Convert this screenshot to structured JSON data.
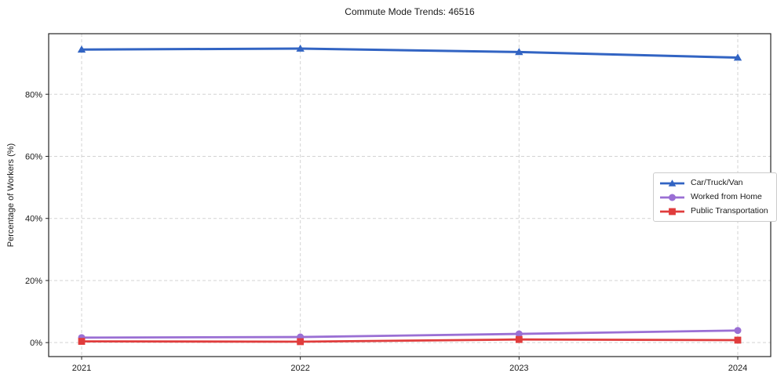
{
  "chart_data": {
    "type": "line",
    "title": "Commute Mode Trends: 46516",
    "xlabel": "",
    "ylabel": "Percentage of Workers (%)",
    "categories": [
      "2021",
      "2022",
      "2023",
      "2024"
    ],
    "series": [
      {
        "name": "Car/Truck/Van",
        "color": "#3264c3",
        "marker": "triangle",
        "values": [
          94.4,
          94.7,
          93.6,
          91.8
        ]
      },
      {
        "name": "Worked from Home",
        "color": "#9a6fd4",
        "marker": "circle",
        "values": [
          1.6,
          1.8,
          2.8,
          3.9
        ]
      },
      {
        "name": "Public Transportation",
        "color": "#e03c3c",
        "marker": "square",
        "values": [
          0.4,
          0.3,
          1.0,
          0.8
        ]
      }
    ],
    "yticks": [
      0,
      20,
      40,
      60,
      80
    ],
    "ytick_labels": [
      "0%",
      "20%",
      "40%",
      "60%",
      "80%"
    ],
    "ylim": [
      -4.5,
      99.5
    ],
    "grid": "dashed-both-axes",
    "legend_position": "center-right",
    "colors": {
      "grid": "#d3d3d3",
      "axis": "#262626",
      "text": "#1a1a1a",
      "background": "#ffffff"
    }
  }
}
